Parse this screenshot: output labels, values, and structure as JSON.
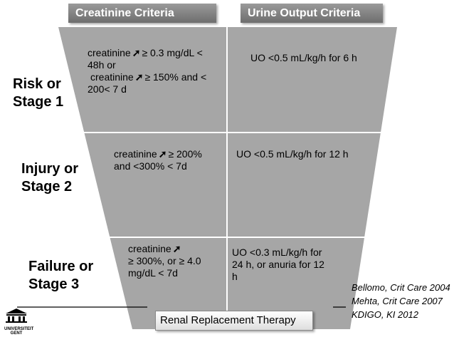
{
  "headers": {
    "creatinine": "Creatinine  Criteria",
    "urine": "Urine Output Criteria"
  },
  "stages": [
    {
      "line1": "Risk or",
      "line2": "Stage 1",
      "creat_lines": [
        "creatinine",
        "≥ 0.3 mg/dL <",
        "48h or",
        "creatinine",
        "≥ 150% and <",
        "200< 7 d"
      ],
      "uo_lines": [
        "UO <0.5 mL/kg/h for 6 h"
      ]
    },
    {
      "line1": "Injury or",
      "line2": "Stage 2",
      "creat_lines": [
        "creatinine",
        "≥ 200%",
        "and <300% < 7d"
      ],
      "uo_lines": [
        "UO <0.5 mL/kg/h for 12 h"
      ]
    },
    {
      "line1": "Failure or",
      "line2": "Stage 3",
      "creat_lines": [
        "creatinine",
        "≥ 300%, or ≥ 4.0",
        "mg/dL < 7d"
      ],
      "uo_lines": [
        "UO <0.3 mL/kg/h for",
        "24 h, or anuria for 12",
        "h"
      ]
    }
  ],
  "rrt_label": "Renal Replacement Therapy",
  "references": [
    "Bellomo, Crit Care 2004",
    "Mehta, Crit Care 2007",
    "KDIGO, KI 2012"
  ],
  "logo_text": [
    "UNIVERSITEIT",
    "GENT"
  ],
  "colors": {
    "funnel": "#a6a6a6",
    "divider": "#ffffff",
    "header": "#8c8c8c"
  }
}
